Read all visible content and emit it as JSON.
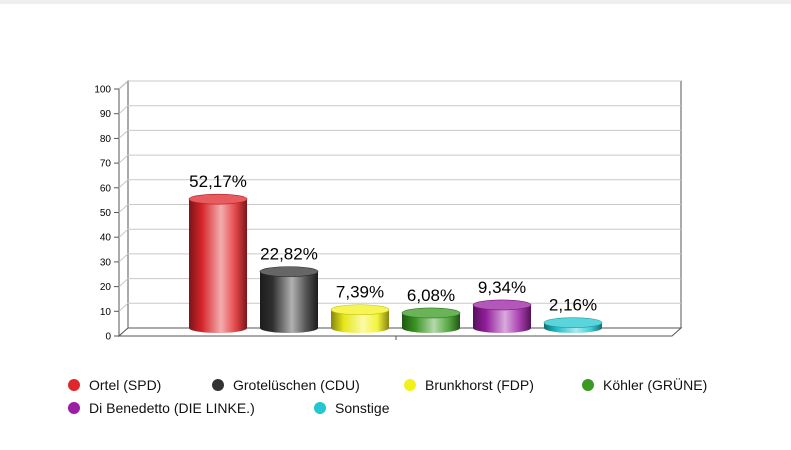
{
  "chart_data": {
    "type": "bar",
    "title": "",
    "xlabel": "",
    "ylabel": "",
    "ylim": [
      0,
      100
    ],
    "yticks": [
      0,
      10,
      20,
      30,
      40,
      50,
      60,
      70,
      80,
      90,
      100
    ],
    "grid": true,
    "legend_position": "bottom",
    "categories": [
      "Ortel (SPD)",
      "Grotelüschen (CDU)",
      "Brunkhorst (FDP)",
      "Köhler (GRÜNE)",
      "Di Benedetto (DIE LINKE.)",
      "Sonstige"
    ],
    "values": [
      52.17,
      22.82,
      7.39,
      6.08,
      9.34,
      2.16
    ],
    "value_labels": [
      "52,17%",
      "22,82%",
      "7,39%",
      "6,08%",
      "9,34%",
      "2,16%"
    ],
    "colors": [
      "#e0262b",
      "#333333",
      "#f2f21a",
      "#3a9a22",
      "#9a1fa3",
      "#22c7cf"
    ]
  }
}
